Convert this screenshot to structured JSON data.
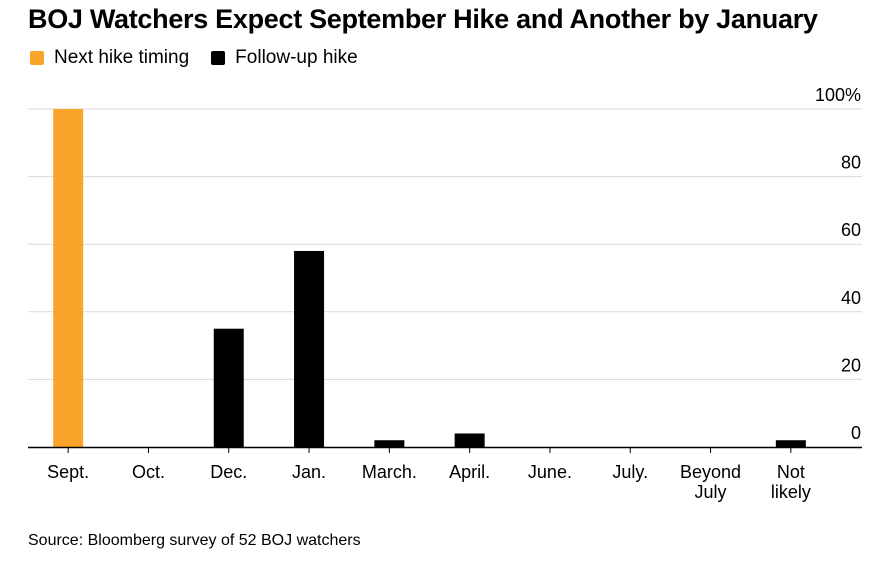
{
  "title": "BOJ Watchers Expect September Hike and Another by January",
  "source": "Source: Bloomberg survey of 52 BOJ watchers",
  "colors": {
    "next_hike": "#f9a42a",
    "follow_up": "#000000",
    "grid": "#d9d9d9",
    "axis": "#000000"
  },
  "chart_data": {
    "type": "bar",
    "title": "BOJ Watchers Expect September Hike and Another by January",
    "xlabel": "",
    "ylabel": "",
    "ylim": [
      0,
      100
    ],
    "yticks": [
      "0",
      "20",
      "40",
      "60",
      "80",
      "100%"
    ],
    "grid": true,
    "legend_position": "top-left",
    "categories": [
      [
        "Sept."
      ],
      [
        "Oct."
      ],
      [
        "Dec."
      ],
      [
        "Jan."
      ],
      [
        "March."
      ],
      [
        "April."
      ],
      [
        "June."
      ],
      [
        "July."
      ],
      [
        "Beyond",
        "July"
      ],
      [
        "Not",
        "likely"
      ]
    ],
    "series": [
      {
        "name": "Next hike timing",
        "color": "#f9a42a",
        "values": [
          100,
          0,
          0,
          0,
          0,
          0,
          0,
          0,
          0,
          0
        ]
      },
      {
        "name": "Follow-up hike",
        "color": "#000000",
        "values": [
          0,
          0,
          35,
          58,
          2,
          4,
          0,
          0,
          0,
          2
        ]
      }
    ]
  }
}
